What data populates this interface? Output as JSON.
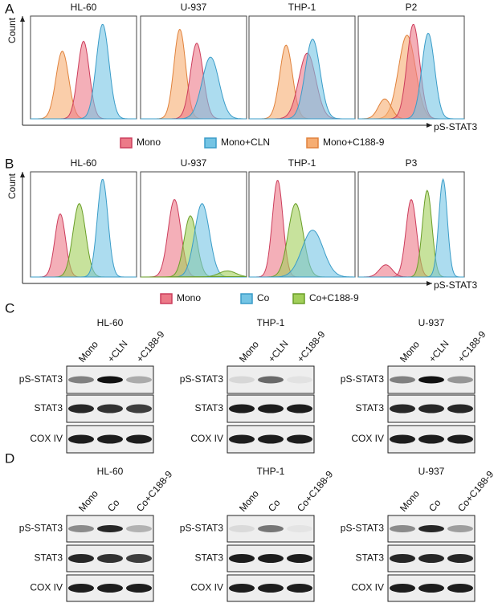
{
  "flow_panels": [
    {
      "label": "A",
      "y_axis_label": "Count",
      "x_axis_label": "pS-STAT3",
      "plot_titles": [
        "HL-60",
        "U-937",
        "THP-1",
        "P2"
      ],
      "legend": [
        "Mono",
        "Mono+CLN",
        "Mono+C188-9"
      ]
    },
    {
      "label": "B",
      "y_axis_label": "Count",
      "x_axis_label": "pS-STAT3",
      "plot_titles": [
        "HL-60",
        "U-937",
        "THP-1",
        "P3"
      ],
      "legend": [
        "Mono",
        "Co",
        "Co+C188-9"
      ]
    }
  ],
  "blot_panels": [
    {
      "label": "C",
      "blots": [
        {
          "title": "HL-60",
          "lanes": [
            "Mono",
            "+CLN",
            "+C188-9"
          ],
          "rows": [
            "pS-STAT3",
            "STAT3",
            "COX IV"
          ]
        },
        {
          "title": "THP-1",
          "lanes": [
            "Mono",
            "+CLN",
            "+C188-9"
          ],
          "rows": [
            "pS-STAT3",
            "STAT3",
            "COX IV"
          ]
        },
        {
          "title": "U-937",
          "lanes": [
            "Mono",
            "+CLN",
            "+C188-9"
          ],
          "rows": [
            "pS-STAT3",
            "STAT3",
            "COX IV"
          ]
        }
      ]
    },
    {
      "label": "D",
      "blots": [
        {
          "title": "HL-60",
          "lanes": [
            "Mono",
            "Co",
            "Co+C188-9"
          ],
          "rows": [
            "pS-STAT3",
            "STAT3",
            "COX IV"
          ]
        },
        {
          "title": "THP-1",
          "lanes": [
            "Mono",
            "Co",
            "Co+C188-9"
          ],
          "rows": [
            "pS-STAT3",
            "STAT3",
            "COX IV"
          ]
        },
        {
          "title": "U-937",
          "lanes": [
            "Mono",
            "Co",
            "Co+C188-9"
          ],
          "rows": [
            "pS-STAT3",
            "STAT3",
            "COX IV"
          ]
        }
      ]
    }
  ]
}
